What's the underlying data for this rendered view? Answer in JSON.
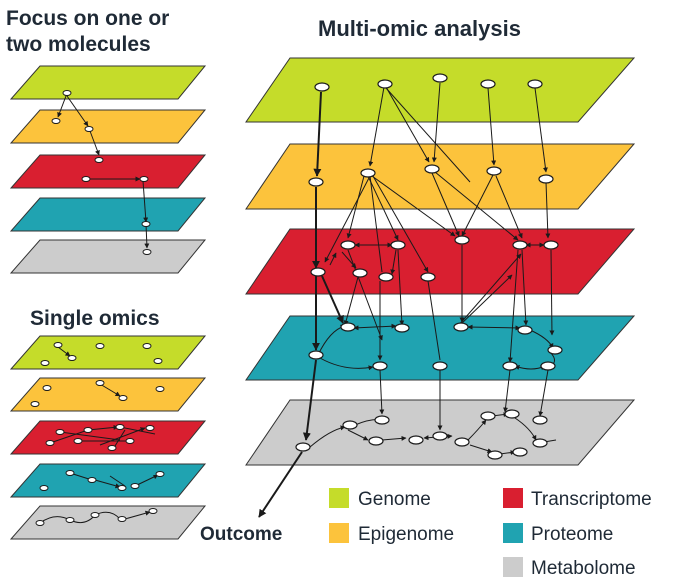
{
  "headings": {
    "focus_line1": "Focus on one or",
    "focus_line2": "two molecules",
    "single_omics": "Single omics",
    "multi_omic": "Multi-omic analysis",
    "outcome": "Outcome"
  },
  "layers": [
    {
      "name": "Genome",
      "color": "#c5dc2a"
    },
    {
      "name": "Epigenome",
      "color": "#fcc33c"
    },
    {
      "name": "Transcriptome",
      "color": "#d91f30"
    },
    {
      "name": "Proteome",
      "color": "#20a3b1"
    },
    {
      "name": "Metabolome",
      "color": "#cccccc"
    }
  ],
  "legend": {
    "genome": "Genome",
    "epigenome": "Epigenome",
    "transcriptome": "Transcriptome",
    "proteome": "Proteome",
    "metabolome": "Metabolome"
  },
  "colors": {
    "genome": "#c5dc2a",
    "epigenome": "#fcc33c",
    "transcriptome": "#d91f30",
    "proteome": "#20a3b1",
    "metabolome": "#cccccc",
    "text": "#1f2a36",
    "edge": "#1a1a1a"
  }
}
